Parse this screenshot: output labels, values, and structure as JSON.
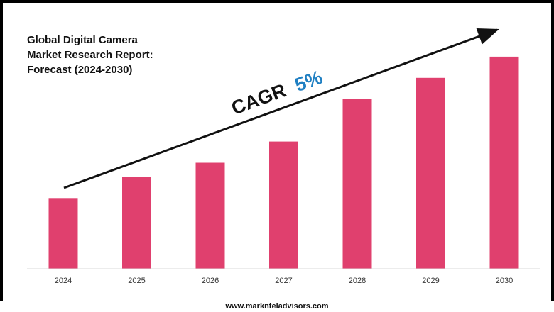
{
  "chart_data": {
    "type": "bar",
    "title_lines": [
      "Global Digital Camera",
      "Market Research Report:",
      "Forecast (2024-2030)"
    ],
    "categories": [
      "2024",
      "2025",
      "2026",
      "2027",
      "2028",
      "2029",
      "2030"
    ],
    "values": [
      1.0,
      1.3,
      1.5,
      1.8,
      2.4,
      2.7,
      3.0
    ],
    "ylim": [
      0,
      3.2
    ],
    "xlabel": "",
    "ylabel": "",
    "grid": false,
    "annotation": {
      "label": "CAGR",
      "value": "5%",
      "label_color": "#111111",
      "value_color": "#1f7fc2"
    },
    "bar_color": "#e0406e"
  },
  "footer": {
    "url": "www.marknteladvisors.com"
  }
}
